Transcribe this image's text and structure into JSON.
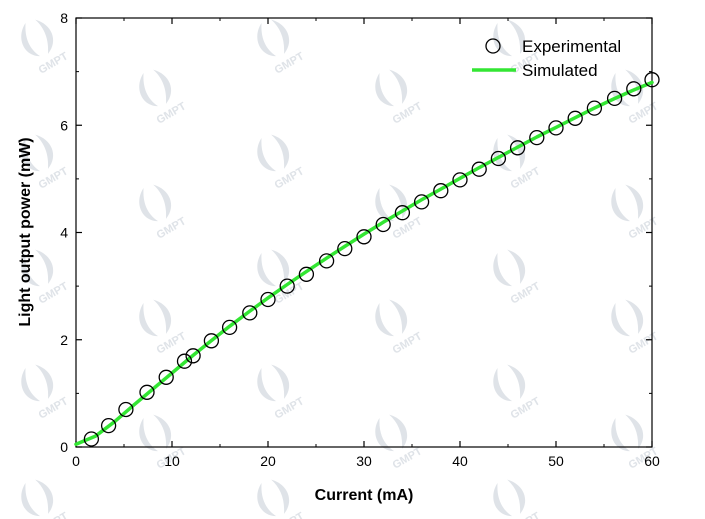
{
  "watermark": {
    "text": "GMPT",
    "color": "#dfe3e8"
  },
  "chart_data": {
    "type": "scatter",
    "xlabel": "Current (mA)",
    "ylabel": "Light output power (mW)",
    "xlim": [
      0,
      60
    ],
    "ylim": [
      0,
      8
    ],
    "xticks": [
      0,
      10,
      20,
      30,
      40,
      50,
      60
    ],
    "yticks": [
      0,
      2,
      4,
      6,
      8
    ],
    "xtick_labels": [
      "0",
      "10",
      "20",
      "30",
      "40",
      "50",
      "60"
    ],
    "ytick_labels": [
      "0",
      "2",
      "4",
      "6",
      "8"
    ],
    "grid": false,
    "legend_position": "top-right",
    "series": [
      {
        "name": "Experimental",
        "kind": "scatter",
        "marker": "open-circle",
        "color": "#000000",
        "x": [
          1.6,
          3.4,
          5.2,
          7.4,
          9.4,
          11.3,
          12.2,
          14.1,
          16.0,
          18.1,
          20.0,
          22.0,
          24.0,
          26.1,
          28.0,
          30.0,
          32.0,
          34.0,
          36.0,
          38.0,
          40.0,
          42.0,
          44.0,
          46.0,
          48.0,
          50.0,
          52.0,
          54.0,
          56.1,
          58.1,
          60.0
        ],
        "y": [
          0.15,
          0.4,
          0.7,
          1.02,
          1.3,
          1.6,
          1.7,
          1.98,
          2.23,
          2.5,
          2.75,
          3.0,
          3.22,
          3.47,
          3.7,
          3.92,
          4.15,
          4.37,
          4.57,
          4.78,
          4.98,
          5.18,
          5.38,
          5.58,
          5.77,
          5.95,
          6.13,
          6.32,
          6.5,
          6.68,
          6.85
        ]
      },
      {
        "name": "Simulated",
        "kind": "line",
        "color": "#33e633",
        "x": [
          0,
          2,
          4,
          6,
          8,
          10,
          12,
          14,
          16,
          18,
          20,
          22,
          24,
          26,
          28,
          30,
          32,
          34,
          36,
          38,
          40,
          42,
          44,
          46,
          48,
          50,
          52,
          54,
          56,
          58,
          60
        ],
        "y": [
          0.05,
          0.2,
          0.47,
          0.78,
          1.08,
          1.38,
          1.68,
          1.97,
          2.25,
          2.52,
          2.78,
          3.03,
          3.27,
          3.51,
          3.74,
          3.97,
          4.19,
          4.4,
          4.61,
          4.81,
          5.01,
          5.21,
          5.4,
          5.59,
          5.78,
          5.96,
          6.14,
          6.32,
          6.49,
          6.65,
          6.8
        ]
      }
    ]
  }
}
